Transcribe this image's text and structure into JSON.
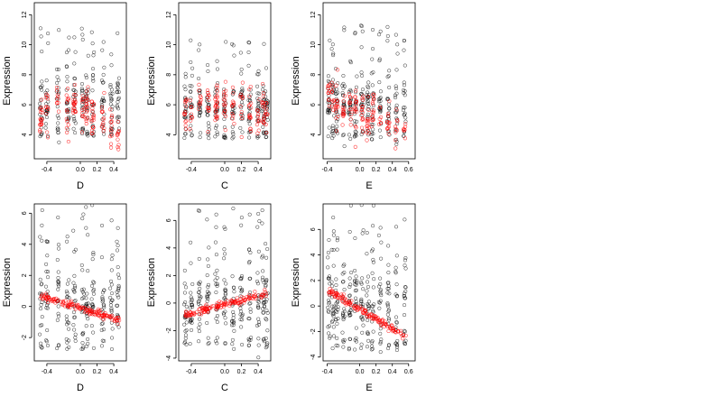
{
  "chart_data": [
    {
      "type": "scatter",
      "xlabel": "D",
      "ylabel": "Expression",
      "xlim": [
        -0.55,
        0.55
      ],
      "ylim": [
        2.4,
        12.8
      ],
      "xticks": [
        -0.4,
        0.0,
        0.2,
        0.4
      ],
      "xtick_labels": [
        "-0.4",
        "0.0",
        "0.2",
        "0.4"
      ],
      "yticks": [
        4,
        6,
        8,
        10,
        12
      ],
      "ytick_labels": [
        "4",
        "6",
        "8",
        "10",
        "12"
      ],
      "x_columns": [
        -0.47,
        -0.4,
        -0.27,
        -0.15,
        -0.07,
        0.03,
        0.08,
        0.15,
        0.27,
        0.37,
        0.45
      ],
      "red_trend": {
        "shape": "wavy",
        "points": [
          [
            -0.47,
            5.2
          ],
          [
            -0.4,
            5.8
          ],
          [
            -0.27,
            6.2
          ],
          [
            -0.15,
            5.4
          ],
          [
            -0.07,
            6.2
          ],
          [
            0.03,
            5.6
          ],
          [
            0.08,
            6.0
          ],
          [
            0.15,
            5.2
          ],
          [
            0.27,
            5.4
          ],
          [
            0.37,
            4.2
          ],
          [
            0.45,
            4.0
          ]
        ]
      },
      "black_spread": {
        "low": 4.5,
        "high": 8.0
      },
      "grid": false,
      "legend": "none",
      "colors": {
        "black": "#000000",
        "red": "#ff0000"
      }
    },
    {
      "type": "scatter",
      "xlabel": "C",
      "ylabel": "Expression",
      "xlim": [
        -0.55,
        0.55
      ],
      "ylim": [
        2.4,
        12.8
      ],
      "xticks": [
        -0.4,
        0.0,
        0.2,
        0.4
      ],
      "xtick_labels": [
        "-0.4",
        "0.0",
        "0.2",
        "0.4"
      ],
      "yticks": [
        4,
        6,
        8,
        10,
        12
      ],
      "ytick_labels": [
        "4",
        "6",
        "8",
        "10",
        "12"
      ],
      "x_columns": [
        -0.47,
        -0.4,
        -0.3,
        -0.2,
        -0.1,
        0.0,
        0.1,
        0.2,
        0.3,
        0.4,
        0.46,
        0.5
      ],
      "red_trend": {
        "shape": "wavy",
        "points": [
          [
            -0.47,
            5.6
          ],
          [
            -0.4,
            5.8
          ],
          [
            -0.3,
            6.4
          ],
          [
            -0.2,
            6.0
          ],
          [
            -0.1,
            6.2
          ],
          [
            0.0,
            5.8
          ],
          [
            0.1,
            6.0
          ],
          [
            0.2,
            5.6
          ],
          [
            0.3,
            5.8
          ],
          [
            0.4,
            5.4
          ],
          [
            0.46,
            5.6
          ],
          [
            0.5,
            5.0
          ]
        ]
      },
      "black_spread": {
        "low": 4.3,
        "high": 7.5
      },
      "grid": false,
      "legend": "none",
      "colors": {
        "black": "#000000",
        "red": "#ff0000"
      }
    },
    {
      "type": "scatter",
      "xlabel": "E",
      "ylabel": "Expression",
      "xlim": [
        -0.45,
        0.68
      ],
      "ylim": [
        2.4,
        12.8
      ],
      "xticks": [
        -0.4,
        0.0,
        0.2,
        0.4,
        0.6
      ],
      "xtick_labels": [
        "-0.4",
        "0.0",
        "0.2",
        "0.4",
        "0.6"
      ],
      "yticks": [
        4,
        6,
        8,
        10,
        12
      ],
      "ytick_labels": [
        "4",
        "6",
        "8",
        "10",
        "12"
      ],
      "x_columns": [
        -0.38,
        -0.33,
        -0.28,
        -0.2,
        -0.12,
        -0.05,
        0.03,
        0.1,
        0.16,
        0.25,
        0.35,
        0.45,
        0.55
      ],
      "red_trend": {
        "shape": "decreasing",
        "points": [
          [
            -0.38,
            6.6
          ],
          [
            -0.33,
            6.4
          ],
          [
            -0.28,
            6.0
          ],
          [
            -0.2,
            5.8
          ],
          [
            -0.12,
            5.6
          ],
          [
            -0.05,
            5.6
          ],
          [
            0.03,
            5.4
          ],
          [
            0.1,
            5.2
          ],
          [
            0.16,
            5.4
          ],
          [
            0.25,
            5.0
          ],
          [
            0.35,
            4.8
          ],
          [
            0.45,
            4.6
          ],
          [
            0.55,
            4.4
          ]
        ]
      },
      "black_spread": {
        "low": 4.3,
        "high": 8.0
      },
      "grid": false,
      "legend": "none",
      "colors": {
        "black": "#000000",
        "red": "#ff0000"
      }
    },
    {
      "type": "scatter",
      "xlabel": "D",
      "ylabel": "Expression",
      "xlim": [
        -0.55,
        0.55
      ],
      "ylim": [
        -3.5,
        6.6
      ],
      "xticks": [
        -0.4,
        0.0,
        0.2,
        0.4
      ],
      "xtick_labels": [
        "-0.4",
        "0.0",
        "0.2",
        "0.4"
      ],
      "yticks": [
        -2,
        0,
        2,
        4,
        6
      ],
      "ytick_labels": [
        "-2",
        "0",
        "2",
        "4",
        "6"
      ],
      "x_columns": [
        -0.47,
        -0.4,
        -0.27,
        -0.15,
        -0.07,
        0.03,
        0.08,
        0.15,
        0.27,
        0.37,
        0.45
      ],
      "red_trend": {
        "shape": "linear",
        "points": [
          [
            -0.47,
            0.7
          ],
          [
            0.47,
            -0.9
          ]
        ]
      },
      "black_spread": {
        "low": -2.0,
        "high": 2.5
      },
      "grid": false,
      "legend": "none",
      "colors": {
        "black": "#000000",
        "red": "#ff0000"
      }
    },
    {
      "type": "scatter",
      "xlabel": "C",
      "ylabel": "Expression",
      "xlim": [
        -0.55,
        0.55
      ],
      "ylim": [
        -4.2,
        7.2
      ],
      "xticks": [
        -0.4,
        0.0,
        0.2,
        0.4
      ],
      "xtick_labels": [
        "-0.4",
        "0.0",
        "0.2",
        "0.4"
      ],
      "yticks": [
        -4,
        -2,
        0,
        2,
        4,
        6
      ],
      "ytick_labels": [
        "-4",
        "-2",
        "0",
        "2",
        "4",
        "6"
      ],
      "x_columns": [
        -0.47,
        -0.4,
        -0.3,
        -0.2,
        -0.1,
        0.0,
        0.1,
        0.2,
        0.3,
        0.4,
        0.46,
        0.5
      ],
      "red_trend": {
        "shape": "linear",
        "points": [
          [
            -0.47,
            -0.9
          ],
          [
            0.5,
            0.7
          ]
        ]
      },
      "black_spread": {
        "low": -2.5,
        "high": 2.5
      },
      "grid": false,
      "legend": "none",
      "colors": {
        "black": "#000000",
        "red": "#ff0000"
      }
    },
    {
      "type": "scatter",
      "xlabel": "E",
      "ylabel": "Expression",
      "xlim": [
        -0.45,
        0.68
      ],
      "ylim": [
        -4.3,
        8.0
      ],
      "xticks": [
        -0.4,
        0.0,
        0.2,
        0.4,
        0.6
      ],
      "xtick_labels": [
        "-0.4",
        "0.0",
        "0.2",
        "0.4",
        "0.6"
      ],
      "yticks": [
        -4,
        -2,
        0,
        2,
        4,
        6
      ],
      "ytick_labels": [
        "-4",
        "-2",
        "0",
        "2",
        "4",
        "6"
      ],
      "x_columns": [
        -0.38,
        -0.33,
        -0.28,
        -0.2,
        -0.12,
        -0.05,
        0.03,
        0.1,
        0.16,
        0.25,
        0.35,
        0.45,
        0.55
      ],
      "red_trend": {
        "shape": "linear",
        "points": [
          [
            -0.38,
            1.2
          ],
          [
            0.6,
            -2.5
          ]
        ]
      },
      "black_spread": {
        "low": -2.5,
        "high": 3.0
      },
      "grid": false,
      "legend": "none",
      "colors": {
        "black": "#000000",
        "red": "#ff0000"
      }
    }
  ]
}
